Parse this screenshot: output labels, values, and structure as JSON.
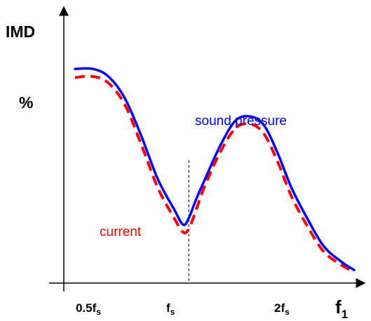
{
  "chart_data": {
    "type": "line",
    "title": "",
    "ylabel": "IMD",
    "y_unit": "%",
    "xlabel": "f",
    "xlabel_sub": "1",
    "x_ticks": [
      {
        "main": "0.5f",
        "sub": "s",
        "value": 0.5
      },
      {
        "main": "f",
        "sub": "s",
        "value": 1
      },
      {
        "main": "2f",
        "sub": "s",
        "value": 2
      }
    ],
    "x_scale": "log",
    "xlim": [
      0.44,
      3.3
    ],
    "ylim": [
      0,
      100
    ],
    "reference_line": {
      "x": 1,
      "style": "dashed",
      "color": "#000000"
    },
    "grid": false,
    "series": [
      {
        "name": "sound pressure",
        "color": "#0000ff",
        "style": "solid",
        "x": [
          0.44,
          0.5,
          0.56,
          0.63,
          0.71,
          0.8,
          0.9,
          0.96,
          1.0,
          1.05,
          1.12,
          1.25,
          1.4,
          1.56,
          1.72,
          1.9,
          2.1,
          2.35,
          2.65,
          3.0,
          3.3
        ],
        "y": [
          99.0,
          99.0,
          95.5,
          85.5,
          68.0,
          48.0,
          34.0,
          27.0,
          30.0,
          38.0,
          47.5,
          63.0,
          75.0,
          77.0,
          73.0,
          60.0,
          44.0,
          30.0,
          17.0,
          10.0,
          6.0
        ]
      },
      {
        "name": "current",
        "color": "#ff0000",
        "style": "dashed",
        "x": [
          0.44,
          0.5,
          0.56,
          0.63,
          0.71,
          0.8,
          0.9,
          0.96,
          1.0,
          1.05,
          1.12,
          1.25,
          1.4,
          1.56,
          1.72,
          1.9,
          2.1,
          2.35,
          2.65,
          3.0,
          3.3
        ],
        "y": [
          95.0,
          95.5,
          92.5,
          82.5,
          64.0,
          44.0,
          30.0,
          23.5,
          25.0,
          33.0,
          44.5,
          60.0,
          71.5,
          73.5,
          69.0,
          56.0,
          40.0,
          26.5,
          14.5,
          8.5,
          5.0
        ]
      }
    ],
    "annotations": [
      "sound pressure",
      "current"
    ]
  }
}
